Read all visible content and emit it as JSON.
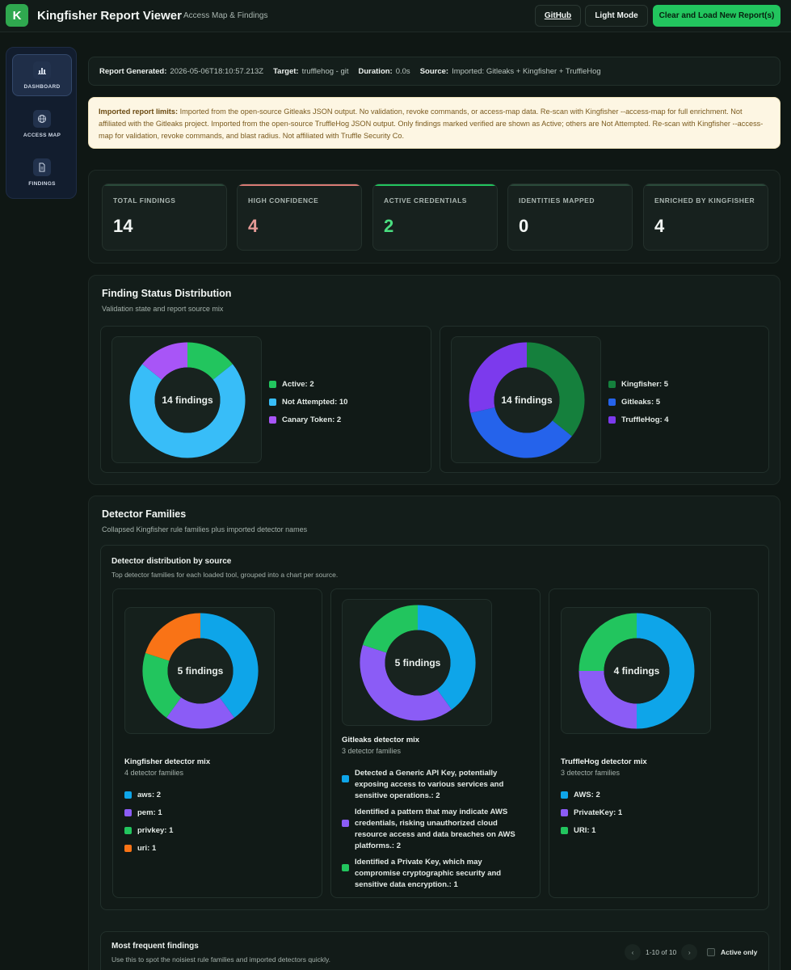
{
  "header": {
    "logo_letter": "K",
    "title": "Kingfisher Report Viewer",
    "subtitle": "Access Map & Findings",
    "github": "GitHub",
    "light_mode": "Light Mode",
    "clear_load": "Clear and Load New Report(s)"
  },
  "sidebar": {
    "items": [
      {
        "label": "DASHBOARD",
        "icon": "bar-chart-icon"
      },
      {
        "label": "ACCESS MAP",
        "icon": "globe-icon"
      },
      {
        "label": "FINDINGS",
        "icon": "document-icon"
      }
    ]
  },
  "meta": {
    "generated_label": "Report Generated:",
    "generated": "2026-05-06T18:10:57.213Z",
    "target_label": "Target:",
    "target": "trufflehog - git",
    "duration_label": "Duration:",
    "duration": "0.0s",
    "source_label": "Source:",
    "source": "Imported: Gitleaks + Kingfisher + TruffleHog"
  },
  "notice": {
    "heading": "Imported report limits:",
    "text": "Imported from the open-source Gitleaks JSON output. No validation, revoke commands, or access-map data. Re-scan with Kingfisher --access-map for full enrichment. Not affiliated with the Gitleaks project. Imported from the open-source TruffleHog JSON output. Only findings marked verified are shown as Active; others are Not Attempted. Re-scan with Kingfisher --access-map for validation, revoke commands, and blast radius. Not affiliated with Truffle Security Co."
  },
  "stats": [
    {
      "label": "TOTAL FINDINGS",
      "value": "14",
      "color": "#f2f6f4",
      "bar": "#2a4a3a"
    },
    {
      "label": "HIGH CONFIDENCE",
      "value": "4",
      "color": "#e59a96",
      "bar": "#d97b74"
    },
    {
      "label": "ACTIVE CREDENTIALS",
      "value": "2",
      "color": "#4ade80",
      "bar": "#22c55e"
    },
    {
      "label": "IDENTITIES MAPPED",
      "value": "0",
      "color": "#f2f6f4",
      "bar": "#2a4a3a"
    },
    {
      "label": "ENRICHED BY KINGFISHER",
      "value": "4",
      "color": "#f2f6f4",
      "bar": "#2a4a3a"
    }
  ],
  "status_section": {
    "title": "Finding Status Distribution",
    "subtitle": "Validation state and report source mix"
  },
  "detector_section": {
    "title": "Detector Families",
    "subtitle": "Collapsed Kingfisher rule families plus imported detector names",
    "inner_title": "Detector distribution by source",
    "inner_subtitle": "Top detector families for each loaded tool, grouped into a chart per source."
  },
  "frequent": {
    "title": "Most frequent findings",
    "subtitle": "Use this to spot the noisiest rule families and imported detectors quickly.",
    "page_text": "1-10 of 10",
    "prev": "‹",
    "next": "›",
    "active_only": "Active only"
  },
  "chart_data": [
    {
      "type": "pie",
      "center": "14 findings",
      "categories": [
        "Active",
        "Not Attempted",
        "Canary Token"
      ],
      "legend": [
        "Active: 2",
        "Not Attempted: 10",
        "Canary Token: 2"
      ],
      "values": [
        2,
        10,
        2
      ],
      "colors": [
        "#22c55e",
        "#38bdf8",
        "#a855f7"
      ]
    },
    {
      "type": "pie",
      "center": "14 findings",
      "categories": [
        "Kingfisher",
        "Gitleaks",
        "TruffleHog"
      ],
      "legend": [
        "Kingfisher: 5",
        "Gitleaks: 5",
        "TruffleHog: 4"
      ],
      "values": [
        5,
        5,
        4
      ],
      "colors": [
        "#15803d",
        "#2563eb",
        "#7c3aed"
      ]
    },
    {
      "type": "pie",
      "center": "5 findings",
      "title": "Kingfisher detector mix",
      "subtitle": "4 detector families",
      "categories": [
        "aws",
        "pem",
        "privkey",
        "uri"
      ],
      "legend": [
        "aws: 2",
        "pem: 1",
        "privkey: 1",
        "uri: 1"
      ],
      "values": [
        2,
        1,
        1,
        1
      ],
      "colors": [
        "#0ea5e9",
        "#8b5cf6",
        "#22c55e",
        "#f97316"
      ]
    },
    {
      "type": "pie",
      "center": "5 findings",
      "title": "Gitleaks detector mix",
      "subtitle": "3 detector families",
      "categories": [
        "Detected a Generic API Key, potentially exposing access to various services and sensitive operations.",
        "Identified a pattern that may indicate AWS credentials, risking unauthorized cloud resource access and data breaches on AWS platforms.",
        "Identified a Private Key, which may compromise cryptographic security and sensitive data encryption."
      ],
      "legend": [
        "Detected a Generic API Key, potentially exposing access to various services and sensitive operations.: 2",
        "Identified a pattern that may indicate AWS credentials, risking unauthorized cloud resource access and data breaches on AWS platforms.: 2",
        "Identified a Private Key, which may compromise cryptographic security and sensitive data encryption.: 1"
      ],
      "values": [
        2,
        2,
        1
      ],
      "colors": [
        "#0ea5e9",
        "#8b5cf6",
        "#22c55e"
      ]
    },
    {
      "type": "pie",
      "center": "4 findings",
      "title": "TruffleHog detector mix",
      "subtitle": "3 detector families",
      "categories": [
        "AWS",
        "PrivateKey",
        "URI"
      ],
      "legend": [
        "AWS: 2",
        "PrivateKey: 1",
        "URI: 1"
      ],
      "values": [
        2,
        1,
        1
      ],
      "colors": [
        "#0ea5e9",
        "#8b5cf6",
        "#22c55e"
      ]
    }
  ]
}
